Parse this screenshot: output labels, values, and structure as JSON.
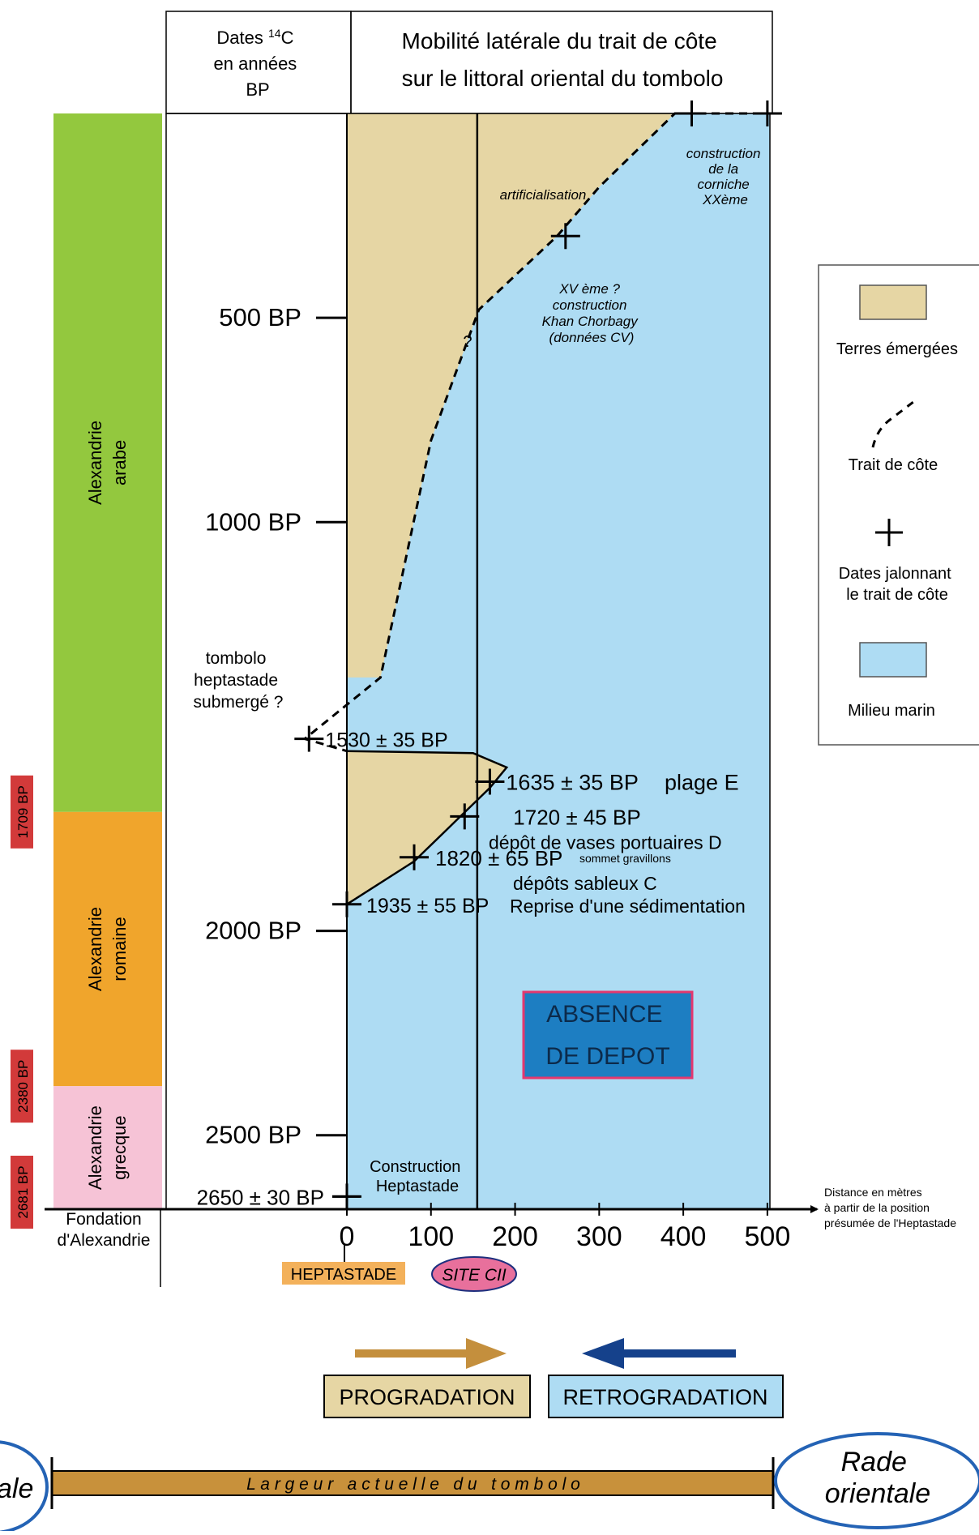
{
  "header": {
    "dates_lines": [
      "Dates ",
      "14",
      "C",
      "en années",
      "BP"
    ],
    "title_lines": [
      "Mobilité latérale du trait de côte",
      "sur le littoral oriental du tombolo"
    ]
  },
  "periods": [
    {
      "id": "arabe",
      "lines": [
        "Alexandrie",
        "arabe"
      ],
      "color": "#93c83e",
      "start_bp": 0,
      "end_bp": 1709
    },
    {
      "id": "romaine",
      "lines": [
        "Alexandrie",
        "romaine"
      ],
      "color": "#f0a52c",
      "start_bp": 1709,
      "end_bp": 2380
    },
    {
      "id": "grecque",
      "lines": [
        "Alexandrie",
        "grecque"
      ],
      "color": "#f6c3d6",
      "start_bp": 2380,
      "end_bp": 2681
    }
  ],
  "boundary_tags": [
    "1709 BP",
    "2380 BP",
    "2681 BP"
  ],
  "fondation": [
    "Fondation",
    "d'Alexandrie"
  ],
  "time_ticks": [
    {
      "label": "500 BP",
      "bp": 500
    },
    {
      "label": "1000 BP",
      "bp": 1000
    },
    {
      "label": "2000 BP",
      "bp": 2000
    },
    {
      "label": "2500 BP",
      "bp": 2500
    },
    {
      "label": "2650 ± 30 BP",
      "bp": 2650
    }
  ],
  "x_axis": {
    "ticks": [
      0,
      100,
      200,
      300,
      400,
      500
    ],
    "tick_labels": [
      "0",
      "100",
      "200",
      "300",
      "400",
      "500"
    ],
    "caption_lines": [
      "Distance en mètres",
      "à partir de la position",
      "présumée de l'Heptastade"
    ],
    "heptastade_label": "HEPTASTADE",
    "site_label": "SITE CII",
    "site_x": 155
  },
  "shoreline_points": [
    [
      476,
      0
    ],
    [
      390,
      0
    ],
    [
      350,
      80
    ],
    [
      300,
      180
    ],
    [
      250,
      300
    ],
    [
      157,
      480
    ],
    [
      100,
      800
    ],
    [
      40,
      1380
    ],
    [
      -50,
      1530
    ],
    [
      0,
      1560
    ],
    [
      150,
      1565
    ],
    [
      190,
      1600
    ],
    [
      170,
      1650
    ],
    [
      130,
      1730
    ],
    [
      80,
      1830
    ],
    [
      0,
      1935
    ]
  ],
  "dates": [
    {
      "label": "1530 ± 35 BP",
      "x": -45,
      "bp": 1530
    },
    {
      "label": "1635 ± 35 BP",
      "note": "plage E",
      "x": 170,
      "bp": 1635
    },
    {
      "label": "1720 ± 45 BP",
      "note": "dépôt de vases portuaires D",
      "x": 140,
      "bp": 1720
    },
    {
      "label": "1820 ± 65 BP",
      "note": "sommet gravillons",
      "note2": "dépôts sableux C",
      "x": 80,
      "bp": 1820
    },
    {
      "label": "1935 ± 55 BP",
      "note": "Reprise d'une sédimentation",
      "x": 0,
      "bp": 1935
    }
  ],
  "annotations": {
    "tombolo": [
      "tombolo",
      "heptastade",
      "submergé ?"
    ],
    "artificialisation": "artificialisation",
    "xv": [
      "XV ème ?",
      "construction",
      "Khan Chorbagy",
      "(données CV)"
    ],
    "corniche": [
      "construction",
      "de la",
      "corniche",
      "XXème"
    ],
    "question": "?",
    "construction_heptastade": [
      "Construction",
      "Heptastade"
    ],
    "absence": [
      "ABSENCE",
      "DE DEPOT"
    ]
  },
  "legend": {
    "terres": "Terres émergées",
    "trait": "Trait de côte",
    "dates": [
      "Dates jalonnant",
      "le trait de côte"
    ],
    "marin": "Milieu marin"
  },
  "arrows": {
    "progradation": "PROGRADATION",
    "retrogradation": "RETROGRADATION"
  },
  "bottom": {
    "left_label": "ale",
    "band": "L a r g e u r   a c t u e l l e   d u   t o m b o l o",
    "right_label": [
      "Rade",
      "orientale"
    ]
  },
  "colors": {
    "land": "#e6d6a4",
    "sea": "#aedcf3",
    "absence_fill": "#1d7ec2",
    "absence_border": "#e4386f",
    "tag_red": "#d23a3a",
    "heptastade_tag": "#f3b15b",
    "site_tag": "#e8709c",
    "prograd_arrow": "#c48f3d",
    "retrograd_arrow": "#15418b",
    "prograd_box": "#e6d6a4",
    "retrograd_box": "#aedcf3",
    "band": "#c8913b",
    "oval": "#2463b5"
  }
}
